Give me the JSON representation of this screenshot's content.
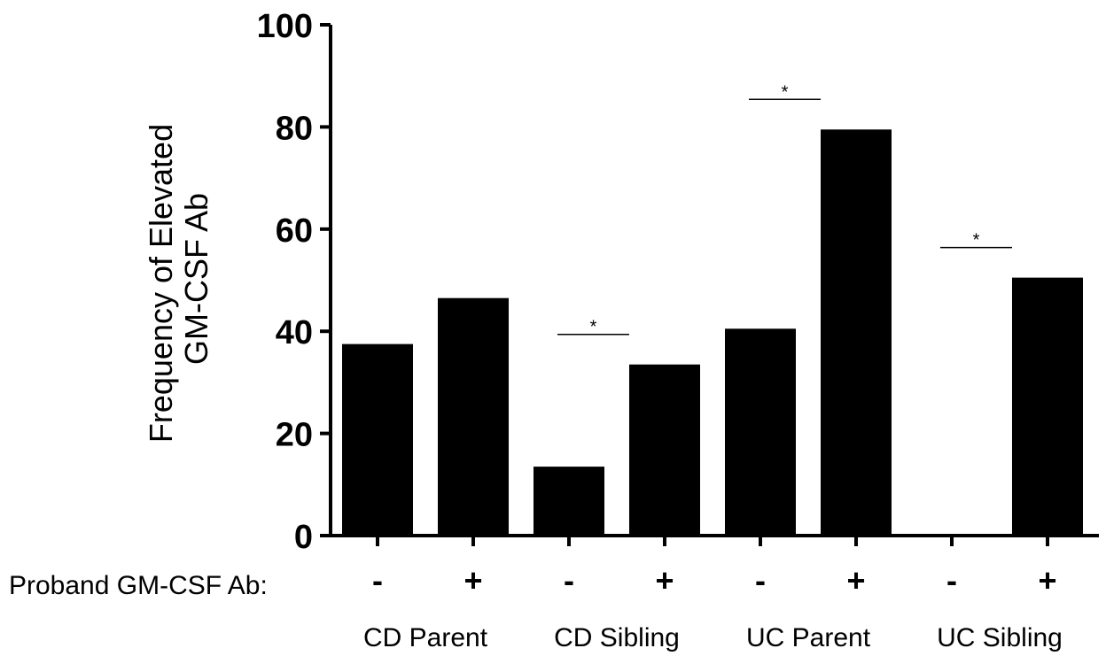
{
  "chart_data": {
    "type": "bar",
    "ylabel_lines": [
      "Frequency of Elevated",
      "GM-CSF Ab"
    ],
    "ylim": [
      0,
      100
    ],
    "yticks": [
      0,
      20,
      40,
      60,
      80,
      100
    ],
    "row_label": "Proband GM-CSF Ab:",
    "groups": [
      {
        "label": "CD Parent",
        "signs": [
          "-",
          "+"
        ],
        "values": [
          37.5,
          46.5
        ]
      },
      {
        "label": "CD Sibling",
        "signs": [
          "-",
          "+"
        ],
        "values": [
          13.5,
          33.5
        ],
        "significance": "*"
      },
      {
        "label": "UC Parent",
        "signs": [
          "-",
          "+"
        ],
        "values": [
          40.5,
          79.5
        ],
        "significance": "*"
      },
      {
        "label": "UC Sibling",
        "signs": [
          "-",
          "+"
        ],
        "values": [
          0,
          50.5
        ],
        "significance": "*"
      }
    ],
    "bar_color": "#000000",
    "grid": false,
    "legend": "none"
  }
}
